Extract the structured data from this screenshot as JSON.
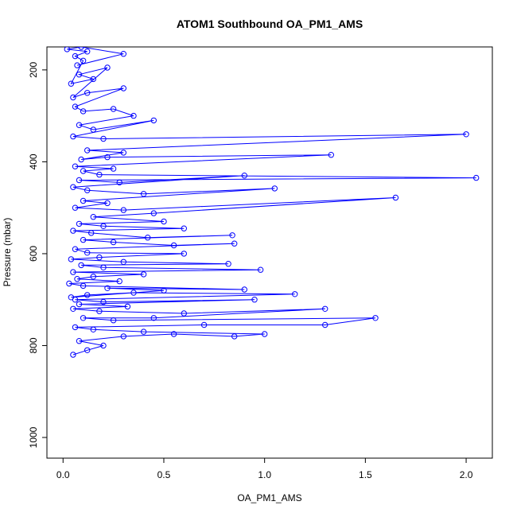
{
  "chart_data": {
    "type": "scatter",
    "title": "ATOM1 Southbound OA_PM1_AMS",
    "xlabel": "OA_PM1_AMS",
    "ylabel": "Pressure (mbar)",
    "xlim": [
      -0.08,
      2.13
    ],
    "ylim": [
      1045,
      150
    ],
    "y_reversed": true,
    "x_ticks": [
      "0.0",
      "0.5",
      "1.0",
      "1.5",
      "2.0"
    ],
    "x_tick_values": [
      0,
      0.5,
      1.0,
      1.5,
      2.0
    ],
    "y_ticks": [
      "200",
      "400",
      "600",
      "800",
      "1000"
    ],
    "y_tick_values": [
      200,
      400,
      600,
      800,
      1000
    ],
    "grid": false,
    "series": [
      {
        "marker": "open-circle",
        "line": true,
        "color": "#0000ff",
        "points": [
          [
            0.05,
            820
          ],
          [
            0.12,
            810
          ],
          [
            0.2,
            800
          ],
          [
            0.08,
            790
          ],
          [
            0.3,
            780
          ],
          [
            0.55,
            775
          ],
          [
            0.85,
            780
          ],
          [
            1.0,
            775
          ],
          [
            0.4,
            770
          ],
          [
            0.15,
            765
          ],
          [
            0.06,
            760
          ],
          [
            0.7,
            755
          ],
          [
            1.3,
            755
          ],
          [
            1.55,
            740
          ],
          [
            0.25,
            745
          ],
          [
            0.1,
            740
          ],
          [
            0.45,
            740
          ],
          [
            1.3,
            720
          ],
          [
            0.6,
            730
          ],
          [
            0.18,
            725
          ],
          [
            0.05,
            720
          ],
          [
            0.32,
            715
          ],
          [
            0.08,
            710
          ],
          [
            0.95,
            700
          ],
          [
            0.2,
            705
          ],
          [
            0.06,
            700
          ],
          [
            1.15,
            688
          ],
          [
            0.35,
            685
          ],
          [
            0.12,
            690
          ],
          [
            0.04,
            695
          ],
          [
            0.5,
            680
          ],
          [
            0.22,
            675
          ],
          [
            0.9,
            678
          ],
          [
            0.1,
            670
          ],
          [
            0.03,
            665
          ],
          [
            0.28,
            660
          ],
          [
            0.07,
            655
          ],
          [
            0.15,
            650
          ],
          [
            0.4,
            645
          ],
          [
            0.05,
            640
          ],
          [
            0.98,
            635
          ],
          [
            0.2,
            630
          ],
          [
            0.09,
            625
          ],
          [
            0.82,
            622
          ],
          [
            0.3,
            618
          ],
          [
            0.04,
            612
          ],
          [
            0.18,
            608
          ],
          [
            0.6,
            600
          ],
          [
            0.12,
            598
          ],
          [
            0.06,
            590
          ],
          [
            0.85,
            578
          ],
          [
            0.55,
            582
          ],
          [
            0.25,
            575
          ],
          [
            0.1,
            570
          ],
          [
            0.84,
            560
          ],
          [
            0.42,
            565
          ],
          [
            0.14,
            555
          ],
          [
            0.05,
            550
          ],
          [
            0.6,
            545
          ],
          [
            0.2,
            540
          ],
          [
            0.08,
            535
          ],
          [
            0.5,
            530
          ],
          [
            0.15,
            520
          ],
          [
            0.45,
            512
          ],
          [
            1.65,
            478
          ],
          [
            0.3,
            505
          ],
          [
            0.06,
            500
          ],
          [
            0.22,
            490
          ],
          [
            0.1,
            485
          ],
          [
            1.05,
            458
          ],
          [
            0.4,
            470
          ],
          [
            0.12,
            462
          ],
          [
            0.05,
            455
          ],
          [
            0.9,
            430
          ],
          [
            0.28,
            445
          ],
          [
            0.08,
            440
          ],
          [
            2.05,
            435
          ],
          [
            0.18,
            428
          ],
          [
            0.1,
            420
          ],
          [
            0.25,
            415
          ],
          [
            0.06,
            410
          ],
          [
            1.33,
            385
          ],
          [
            0.22,
            390
          ],
          [
            0.09,
            395
          ],
          [
            0.3,
            380
          ],
          [
            0.12,
            375
          ],
          [
            2.0,
            340
          ],
          [
            0.2,
            350
          ],
          [
            0.05,
            345
          ],
          [
            0.45,
            310
          ],
          [
            0.15,
            330
          ],
          [
            0.08,
            320
          ],
          [
            0.35,
            300
          ],
          [
            0.25,
            285
          ],
          [
            0.1,
            290
          ],
          [
            0.06,
            280
          ],
          [
            0.3,
            240
          ],
          [
            0.12,
            250
          ],
          [
            0.05,
            260
          ],
          [
            0.22,
            195
          ],
          [
            0.08,
            210
          ],
          [
            0.15,
            220
          ],
          [
            0.04,
            230
          ],
          [
            0.1,
            180
          ],
          [
            0.06,
            170
          ],
          [
            0.12,
            160
          ],
          [
            0.02,
            155
          ],
          [
            0.09,
            150
          ],
          [
            0.3,
            165
          ],
          [
            0.07,
            190
          ]
        ]
      }
    ]
  }
}
